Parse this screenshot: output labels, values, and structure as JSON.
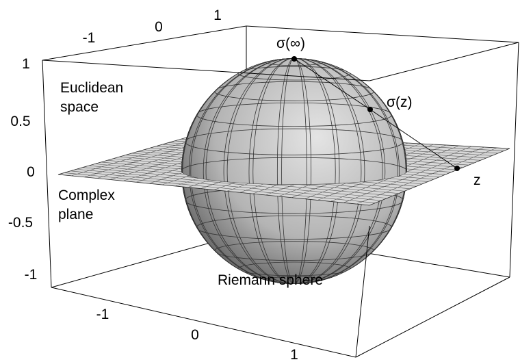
{
  "axes": {
    "x_ticks": [
      "-1",
      "0",
      "1"
    ],
    "y_ticks": [
      "-1",
      "0",
      "1"
    ],
    "z_ticks": [
      "1",
      "0.5",
      "0",
      "-0.5",
      "-1"
    ]
  },
  "labels": {
    "north_pole": "σ(∞)",
    "projection": "σ(z)",
    "point": "z",
    "euclidean_space": [
      "Euclidean",
      "space"
    ],
    "complex_plane": [
      "Complex",
      "plane"
    ],
    "riemann_sphere": "Riemann sphere"
  }
}
